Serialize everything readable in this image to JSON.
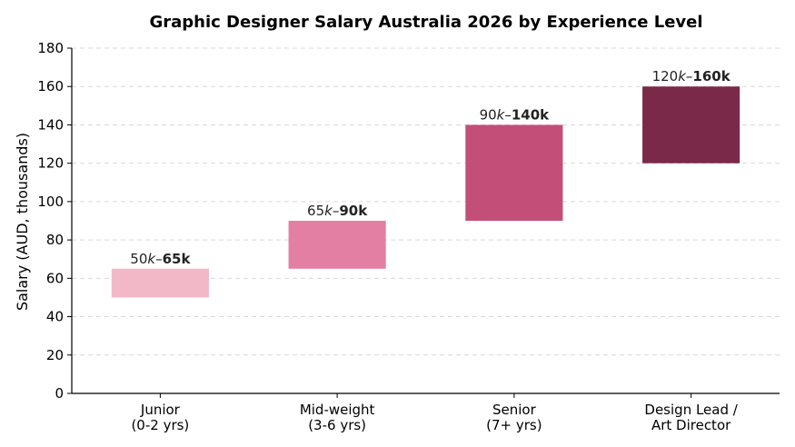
{
  "chart_data": {
    "type": "bar",
    "title": "Graphic Designer Salary Australia 2026 by Experience Level",
    "xlabel": "",
    "ylabel": "Salary (AUD, thousands)",
    "ylim": [
      0,
      180
    ],
    "yticks": [
      0,
      20,
      40,
      60,
      80,
      100,
      120,
      140,
      160,
      180
    ],
    "grid": true,
    "categories": [
      [
        "Junior",
        "(0-2 yrs)"
      ],
      [
        "Mid-weight",
        "(3-6 yrs)"
      ],
      [
        "Senior",
        "(7+ yrs)"
      ],
      [
        "Design Lead /",
        "Art Director"
      ]
    ],
    "ranges": [
      {
        "low": 50,
        "high": 65,
        "label_low": "50",
        "label_high": "65k",
        "color": "#f2b8c8"
      },
      {
        "low": 65,
        "high": 90,
        "label_low": "65",
        "label_high": "90k",
        "color": "#e27fa2"
      },
      {
        "low": 90,
        "high": 140,
        "label_low": "90",
        "label_high": "140k",
        "color": "#c34e78"
      },
      {
        "low": 120,
        "high": 160,
        "label_low": "120",
        "label_high": "160k",
        "color": "#7a2948"
      }
    ]
  }
}
